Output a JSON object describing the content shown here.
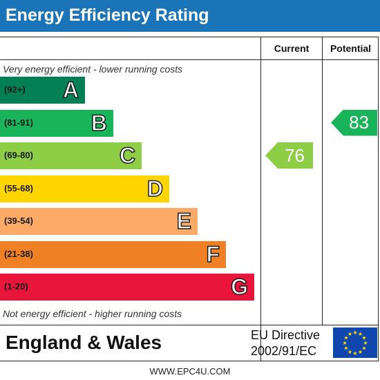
{
  "chart_data": {
    "type": "bar",
    "title": "Energy Efficiency Rating",
    "columns": [
      "Current",
      "Potential"
    ],
    "top_caption": "Very energy efficient - lower running costs",
    "bottom_caption": "Not energy efficient - higher running costs",
    "bands": [
      {
        "range": "(92+)",
        "letter": "A",
        "color": "#008054"
      },
      {
        "range": "(81-91)",
        "letter": "B",
        "color": "#19b459"
      },
      {
        "range": "(69-80)",
        "letter": "C",
        "color": "#8dce46"
      },
      {
        "range": "(55-68)",
        "letter": "D",
        "color": "#ffd500"
      },
      {
        "range": "(39-54)",
        "letter": "E",
        "color": "#fcaa65"
      },
      {
        "range": "(21-38)",
        "letter": "F",
        "color": "#ef8023"
      },
      {
        "range": "(1-20)",
        "letter": "G",
        "color": "#e9153b"
      }
    ],
    "current": {
      "value": 76,
      "band": "C",
      "color": "#8dce46"
    },
    "potential": {
      "value": 83,
      "band": "B",
      "color": "#19b459"
    }
  },
  "footer": {
    "region": "England & Wales",
    "directive_line1": "EU Directive",
    "directive_line2": "2002/91/EC",
    "flag_color": "#0f47af",
    "star_color": "#ffdd00"
  },
  "site": "WWW.EPC4U.COM"
}
